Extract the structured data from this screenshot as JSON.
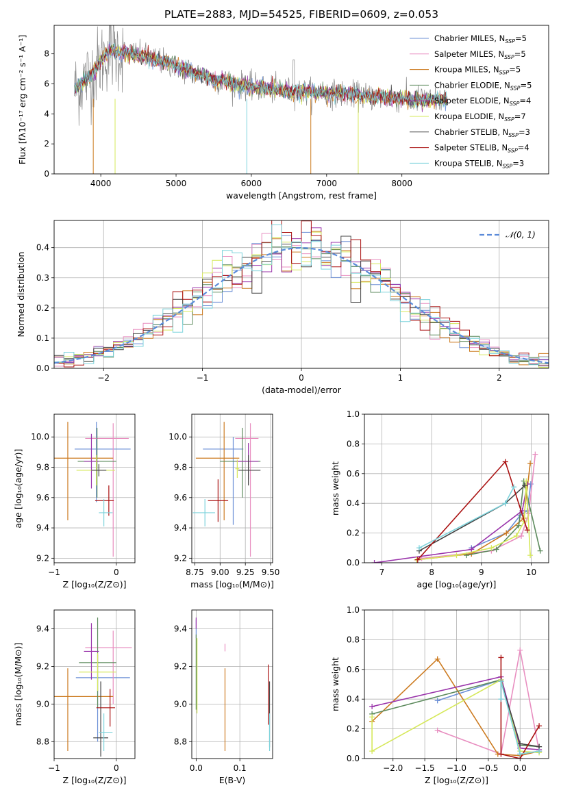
{
  "figure": {
    "title": "PLATE=2883, MJD=54525, FIBERID=0609, z=0.053"
  },
  "colors": [
    "#6b8fd6",
    "#e88ec0",
    "#cc7a1f",
    "#5c8a5c",
    "#9933aa",
    "#d6e85a",
    "#444444",
    "#aa1111",
    "#7cd3dc"
  ],
  "chart_data": [
    {
      "id": "spectrum",
      "type": "line",
      "xlabel": "wavelength [Angstrom, rest frame]",
      "ylabel": "Flux [fλ10⁻¹⁷ erg cm⁻² s⁻¹ A⁻¹]",
      "xlim": [
        3380,
        9950
      ],
      "ylim": [
        0,
        9.9
      ],
      "xticks": [
        4000,
        5000,
        6000,
        7000,
        8000
      ],
      "yticks": [
        0,
        2,
        4,
        6,
        8
      ],
      "legend": "top-right",
      "observed_color": "#888888",
      "continuum": {
        "x": [
          3650,
          3900,
          4100,
          4300,
          4600,
          5000,
          5500,
          6000,
          6500,
          7000,
          7500,
          8000,
          8500
        ],
        "y": [
          5.6,
          6.8,
          8.2,
          8.1,
          7.8,
          7.2,
          6.3,
          5.8,
          5.5,
          5.4,
          5.2,
          5.0,
          4.9
        ]
      },
      "series": [
        {
          "name": "Chabrier MILES, N$_{SSP}$=5",
          "label_main": "Chabrier MILES, N",
          "label_sub": "SSP",
          "label_tail": "=5"
        },
        {
          "name": "Salpeter MILES, N$_{SSP}$=5",
          "label_main": "Salpeter MILES, N",
          "label_sub": "SSP",
          "label_tail": "=5"
        },
        {
          "name": "Kroupa MILES, N$_{SSP}$=5",
          "label_main": "Kroupa MILES, N",
          "label_sub": "SSP",
          "label_tail": "=5"
        },
        {
          "name": "Chabrier ELODIE, N$_{SSP}$=5",
          "label_main": "Chabrier ELODIE, N",
          "label_sub": "SSP",
          "label_tail": "=5"
        },
        {
          "name": "Salpeter ELODIE, N$_{SSP}$=4",
          "label_main": "Salpeter ELODIE, N",
          "label_sub": "SSP",
          "label_tail": "=4"
        },
        {
          "name": "Kroupa ELODIE, N$_{SSP}$=7",
          "label_main": "Kroupa ELODIE, N",
          "label_sub": "SSP",
          "label_tail": "=7"
        },
        {
          "name": "Chabrier STELIB, N$_{SSP}$=3",
          "label_main": "Chabrier STELIB, N",
          "label_sub": "SSP",
          "label_tail": "=3"
        },
        {
          "name": "Salpeter STELIB, N$_{SSP}$=4",
          "label_main": "Salpeter STELIB, N",
          "label_sub": "SSP",
          "label_tail": "=4"
        },
        {
          "name": "Kroupa STELIB, N$_{SSP}$=3",
          "label_main": "Kroupa STELIB, N",
          "label_sub": "SSP",
          "label_tail": "=3"
        }
      ]
    },
    {
      "id": "residuals",
      "type": "line",
      "xlabel": "(data-model)/error",
      "ylabel": "Normed distribution",
      "xlim": [
        -2.5,
        2.5
      ],
      "ylim": [
        0,
        0.49
      ],
      "xticks": [
        -2,
        -1,
        0,
        1,
        2
      ],
      "yticks": [
        0.0,
        0.1,
        0.2,
        0.3,
        0.4
      ],
      "grid": true,
      "legend": "top-right",
      "reference": {
        "name": "𝒩(0, 1)",
        "mean": 0,
        "sigma": 1,
        "color": "#5b8bd9"
      },
      "bin_width": 0.1
    },
    {
      "id": "age_vs_Z",
      "type": "scatter",
      "xlabel": "Z [log₁₀(Z/Z⊙)]",
      "ylabel": "age  [log₁₀(age/yr)]",
      "xlim": [
        -1,
        0.3
      ],
      "ylim": [
        9.17,
        10.15
      ],
      "xticks": [
        -1,
        0
      ],
      "yticks": [
        9.2,
        9.4,
        9.6,
        9.8,
        10.0
      ],
      "grid": true,
      "points": [
        {
          "x": -0.32,
          "y": 9.92,
          "xerr": [
            0.35,
            0.55
          ],
          "yerr": [
            0.35,
            0.18
          ]
        },
        {
          "x": -0.05,
          "y": 9.99,
          "xerr": [
            0.45,
            0.25
          ],
          "yerr": [
            0.78,
            0.1
          ]
        },
        {
          "x": -0.78,
          "y": 9.86,
          "xerr": [
            0.22,
            0.73
          ],
          "yerr": [
            0.41,
            0.24
          ]
        },
        {
          "x": -0.31,
          "y": 9.84,
          "xerr": [
            0.31,
            0.31
          ],
          "yerr": [
            0.24,
            0.22
          ]
        },
        {
          "x": -0.4,
          "y": 9.84,
          "xerr": [
            0.12,
            0.12
          ],
          "yerr": [
            0.18,
            0.18
          ]
        },
        {
          "x": -0.32,
          "y": 9.78,
          "xerr": [
            0.32,
            0.3
          ],
          "yerr": [
            0.1,
            0.1
          ]
        },
        {
          "x": -0.28,
          "y": 9.78,
          "xerr": [
            0.12,
            0.12
          ],
          "yerr": [
            0.04,
            0.04
          ]
        },
        {
          "x": -0.12,
          "y": 9.58,
          "xerr": [
            0.22,
            0.08
          ],
          "yerr": [
            0.1,
            0.1
          ]
        },
        {
          "x": -0.2,
          "y": 9.5,
          "xerr": [
            0.08,
            0.14
          ],
          "yerr": [
            0.09,
            0.09
          ]
        }
      ]
    },
    {
      "id": "age_vs_mass",
      "type": "scatter",
      "xlabel": "mass [log₁₀(M/M⊙)]",
      "ylabel": "",
      "xlim": [
        8.72,
        9.52
      ],
      "ylim": [
        9.17,
        10.15
      ],
      "xticks": [
        8.75,
        9.0,
        9.25,
        9.5
      ],
      "yticks": [
        9.2,
        9.4,
        9.6,
        9.8,
        10.0
      ],
      "grid": true,
      "points": [
        {
          "x": 9.13,
          "y": 9.92,
          "xerr": [
            0.3,
            0.1
          ],
          "yerr": [
            0.5,
            0.08
          ]
        },
        {
          "x": 9.3,
          "y": 9.99,
          "xerr": [
            0.15,
            0.08
          ],
          "yerr": [
            0.78,
            0.1
          ]
        },
        {
          "x": 9.04,
          "y": 9.86,
          "xerr": [
            0.28,
            0.15
          ],
          "yerr": [
            0.41,
            0.24
          ]
        },
        {
          "x": 9.22,
          "y": 9.84,
          "xerr": [
            0.22,
            0.18
          ],
          "yerr": [
            0.24,
            0.22
          ]
        },
        {
          "x": 9.28,
          "y": 9.84,
          "xerr": [
            0.12,
            0.1
          ],
          "yerr": [
            0.12,
            0.12
          ]
        },
        {
          "x": 9.17,
          "y": 9.79,
          "xerr": [
            0.02,
            0.02
          ],
          "yerr": [
            0.06,
            0.06
          ]
        },
        {
          "x": 9.28,
          "y": 9.78,
          "xerr": [
            0.1,
            0.12
          ],
          "yerr": [
            0.1,
            0.1
          ]
        },
        {
          "x": 8.98,
          "y": 9.58,
          "xerr": [
            0.1,
            0.1
          ],
          "yerr": [
            0.14,
            0.14
          ]
        },
        {
          "x": 8.85,
          "y": 9.5,
          "xerr": [
            0.12,
            0.1
          ],
          "yerr": [
            0.09,
            0.09
          ]
        }
      ]
    },
    {
      "id": "weight_vs_age",
      "type": "line",
      "xlabel": "age  [log₁₀(age/yr)]",
      "ylabel": "mass weight",
      "xlim": [
        6.65,
        10.35
      ],
      "ylim": [
        0,
        1
      ],
      "xticks": [
        7,
        8,
        9,
        10
      ],
      "yticks": [
        0.0,
        0.2,
        0.4,
        0.6,
        0.8,
        1.0
      ],
      "grid": true,
      "series": [
        {
          "x": [
            8.8,
            9.5,
            9.78,
            9.92,
            9.99
          ],
          "y": [
            0.1,
            0.2,
            0.32,
            0.35,
            0.53
          ]
        },
        {
          "x": [
            7.8,
            9.2,
            9.8,
            9.95,
            10.08
          ],
          "y": [
            0.03,
            0.08,
            0.18,
            0.33,
            0.73
          ]
        },
        {
          "x": [
            7.7,
            8.8,
            9.5,
            9.85,
            9.98
          ],
          "y": [
            0.02,
            0.06,
            0.2,
            0.3,
            0.67
          ]
        },
        {
          "x": [
            8.7,
            9.3,
            9.75,
            9.85,
            10.18
          ],
          "y": [
            0.05,
            0.09,
            0.25,
            0.55,
            0.08
          ]
        },
        {
          "x": [
            6.85,
            8.8,
            9.82,
            9.92
          ],
          "y": [
            0.0,
            0.09,
            0.35,
            0.53
          ]
        },
        {
          "x": [
            7.7,
            8.5,
            9.2,
            9.7,
            9.86,
            9.9,
            9.98
          ],
          "y": [
            0.02,
            0.05,
            0.1,
            0.18,
            0.28,
            0.55,
            0.05
          ]
        },
        {
          "x": [
            7.75,
            9.48,
            9.87
          ],
          "y": [
            0.08,
            0.4,
            0.52
          ]
        },
        {
          "x": [
            7.72,
            9.48,
            9.92
          ],
          "y": [
            0.02,
            0.68,
            0.22
          ]
        },
        {
          "x": [
            7.75,
            9.48,
            9.65
          ],
          "y": [
            0.1,
            0.4,
            0.51
          ]
        }
      ]
    },
    {
      "id": "mass_vs_Z",
      "type": "scatter",
      "xlabel": "Z [log₁₀(Z/Z⊙)]",
      "ylabel": "mass [log₁₀(M/M⊙)]",
      "xlim": [
        -1,
        0.3
      ],
      "ylim": [
        8.71,
        9.5
      ],
      "xticks": [
        -1,
        0
      ],
      "yticks": [
        8.8,
        9.0,
        9.2,
        9.4
      ],
      "grid": true,
      "points": [
        {
          "x": -0.3,
          "y": 9.14,
          "xerr": [
            0.35,
            0.52
          ],
          "yerr": [
            0.34,
            0.12
          ]
        },
        {
          "x": -0.05,
          "y": 9.3,
          "xerr": [
            0.45,
            0.3
          ],
          "yerr": [
            0.3,
            0.09
          ]
        },
        {
          "x": -0.78,
          "y": 9.04,
          "xerr": [
            0.22,
            0.73
          ],
          "yerr": [
            0.29,
            0.15
          ]
        },
        {
          "x": -0.3,
          "y": 9.22,
          "xerr": [
            0.3,
            0.3
          ],
          "yerr": [
            0.24,
            0.24
          ]
        },
        {
          "x": -0.4,
          "y": 9.28,
          "xerr": [
            0.12,
            0.12
          ],
          "yerr": [
            0.15,
            0.15
          ]
        },
        {
          "x": -0.3,
          "y": 9.17,
          "xerr": [
            0.3,
            0.3
          ],
          "yerr": [
            0.1,
            0.1
          ]
        },
        {
          "x": -0.25,
          "y": 8.82,
          "xerr": [
            0.12,
            0.12
          ],
          "yerr": [
            0.1,
            0.3
          ]
        },
        {
          "x": -0.1,
          "y": 8.98,
          "xerr": [
            0.22,
            0.08
          ],
          "yerr": [
            0.1,
            0.1
          ]
        },
        {
          "x": -0.2,
          "y": 8.85,
          "xerr": [
            0.08,
            0.14
          ],
          "yerr": [
            0.1,
            0.1
          ]
        }
      ]
    },
    {
      "id": "mass_vs_EBV",
      "type": "scatter",
      "xlabel": "E(B-V)",
      "ylabel": "",
      "xlim": [
        -0.01,
        0.175
      ],
      "ylim": [
        8.71,
        9.5
      ],
      "xticks": [
        0.0,
        0.1
      ],
      "yticks": [
        8.8,
        9.0,
        9.2,
        9.4
      ],
      "grid": true,
      "points": [
        {
          "x": 0.0,
          "y": 9.4,
          "xerr": [
            0,
            0
          ],
          "yerr": [
            0.05,
            0.05
          ]
        },
        {
          "x": 0.066,
          "y": 9.3,
          "xerr": [
            0,
            0
          ],
          "yerr": [
            0.02,
            0.02
          ]
        },
        {
          "x": 0.066,
          "y": 9.04,
          "xerr": [
            0,
            0
          ],
          "yerr": [
            0.29,
            0.15
          ]
        },
        {
          "x": 0.0,
          "y": 9.17,
          "xerr": [
            0,
            0
          ],
          "yerr": [
            0.2,
            0.2
          ]
        },
        {
          "x": 0.0,
          "y": 9.43,
          "xerr": [
            0,
            0
          ],
          "yerr": [
            0.03,
            0.03
          ]
        },
        {
          "x": 0.002,
          "y": 9.15,
          "xerr": [
            0,
            0
          ],
          "yerr": [
            0.2,
            0.2
          ]
        },
        {
          "x": 0.168,
          "y": 8.82,
          "xerr": [
            0,
            0
          ],
          "yerr": [
            0.05,
            0.3
          ]
        },
        {
          "x": 0.165,
          "y": 9.05,
          "xerr": [
            0,
            0
          ],
          "yerr": [
            0.16,
            0.16
          ]
        },
        {
          "x": 0.168,
          "y": 8.85,
          "xerr": [
            0,
            0
          ],
          "yerr": [
            0.1,
            0.1
          ]
        }
      ]
    },
    {
      "id": "weight_vs_Z",
      "type": "line",
      "xlabel": "Z [log₁₀(Z/Z⊙)]",
      "ylabel": "mass weight",
      "xlim": [
        -2.45,
        0.45
      ],
      "ylim": [
        0,
        1
      ],
      "xticks": [
        -2.0,
        -1.5,
        -1.0,
        -0.5,
        0.0
      ],
      "yticks": [
        0.0,
        0.2,
        0.4,
        0.6,
        0.8,
        1.0
      ],
      "grid": true,
      "series": [
        {
          "x": [
            -1.3,
            -0.3,
            0.0,
            0.3
          ],
          "y": [
            0.39,
            0.53,
            0.03,
            0.05
          ]
        },
        {
          "x": [
            -1.3,
            -0.3,
            0.0,
            0.3
          ],
          "y": [
            0.19,
            0.03,
            0.73,
            0.05
          ]
        },
        {
          "x": [
            -2.33,
            -1.3,
            -0.35,
            0.0,
            0.3
          ],
          "y": [
            0.25,
            0.67,
            0.03,
            0.02,
            0.05
          ]
        },
        {
          "x": [
            -2.33,
            -0.3,
            0.0,
            0.3
          ],
          "y": [
            0.3,
            0.53,
            0.09,
            0.08
          ]
        },
        {
          "x": [
            -2.33,
            -0.3,
            0.0,
            0.3
          ],
          "y": [
            0.35,
            0.55,
            0.07,
            0.06
          ]
        },
        {
          "x": [
            -2.33,
            -2.33,
            -0.3,
            0.0,
            0.3
          ],
          "y": [
            0.28,
            0.05,
            0.53,
            0.05,
            0.04
          ]
        },
        {
          "x": [
            -0.3,
            0.0,
            0.3
          ],
          "y": [
            0.52,
            0.1,
            0.08
          ]
        },
        {
          "x": [
            -0.3,
            -0.3,
            0.0,
            0.3
          ],
          "y": [
            0.68,
            0.03,
            0.0,
            0.22
          ]
        },
        {
          "x": [
            -0.3,
            -0.3,
            0.0,
            0.3
          ],
          "y": [
            0.4,
            0.52,
            0.03,
            0.05
          ]
        }
      ]
    }
  ]
}
